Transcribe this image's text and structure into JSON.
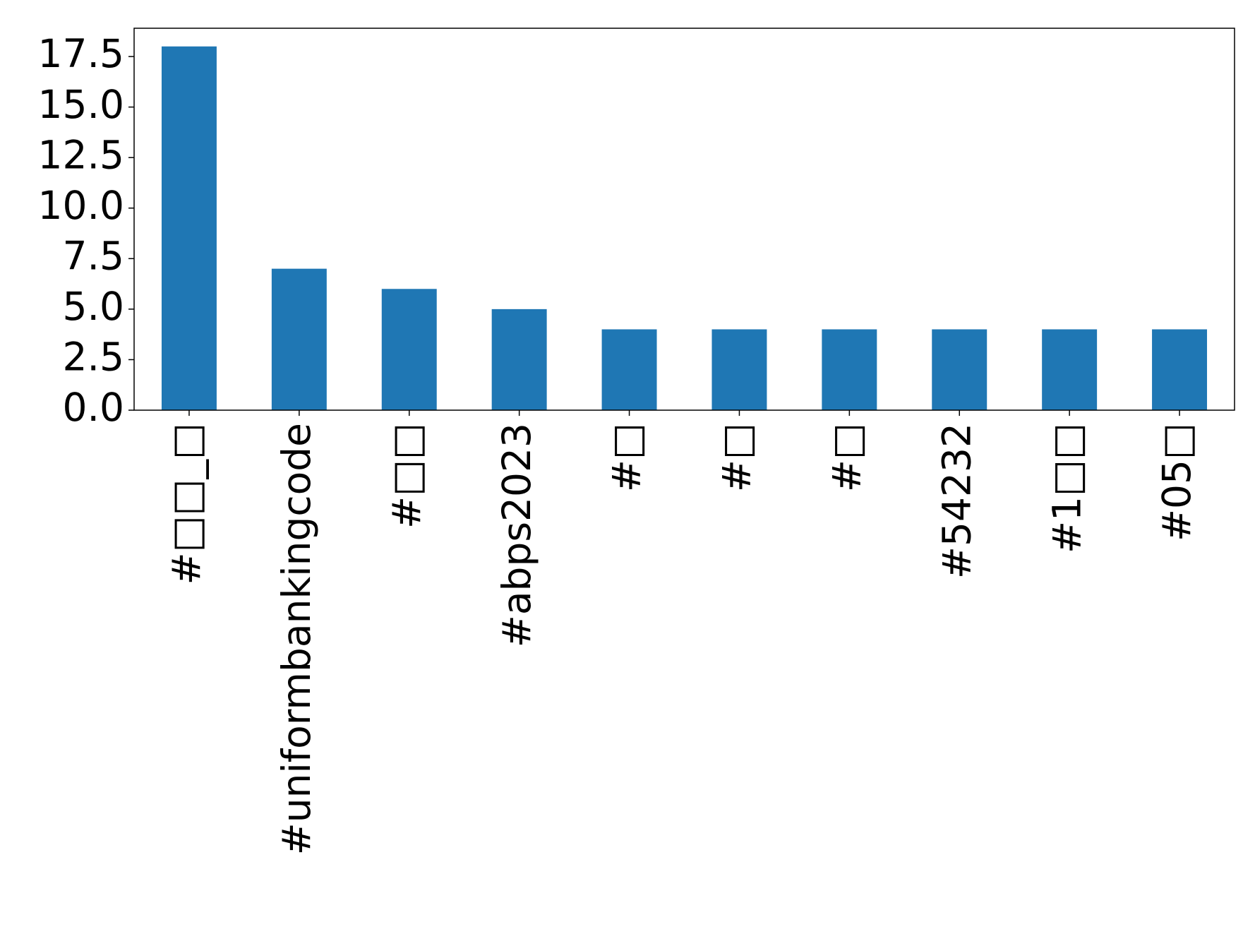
{
  "chart_data": {
    "type": "bar",
    "categories": [
      "#□□_□",
      "#uniformbankingcode",
      "#□□",
      "#abps2023",
      "#□",
      "#□",
      "#□",
      "#54232",
      "#1□□",
      "#05□"
    ],
    "values": [
      18,
      7,
      6,
      5,
      4,
      4,
      4,
      4,
      4,
      4
    ],
    "color": "#1f77b4",
    "ylim": [
      0,
      18.9
    ],
    "yticks": [
      {
        "value": 0,
        "label": "0.0"
      },
      2.5,
      {
        "value": 5,
        "label": "5.0"
      },
      7.5,
      {
        "value": 10,
        "label": "10.0"
      },
      12.5,
      {
        "value": 15,
        "label": "15.0"
      },
      17.5
    ],
    "grid": false
  }
}
